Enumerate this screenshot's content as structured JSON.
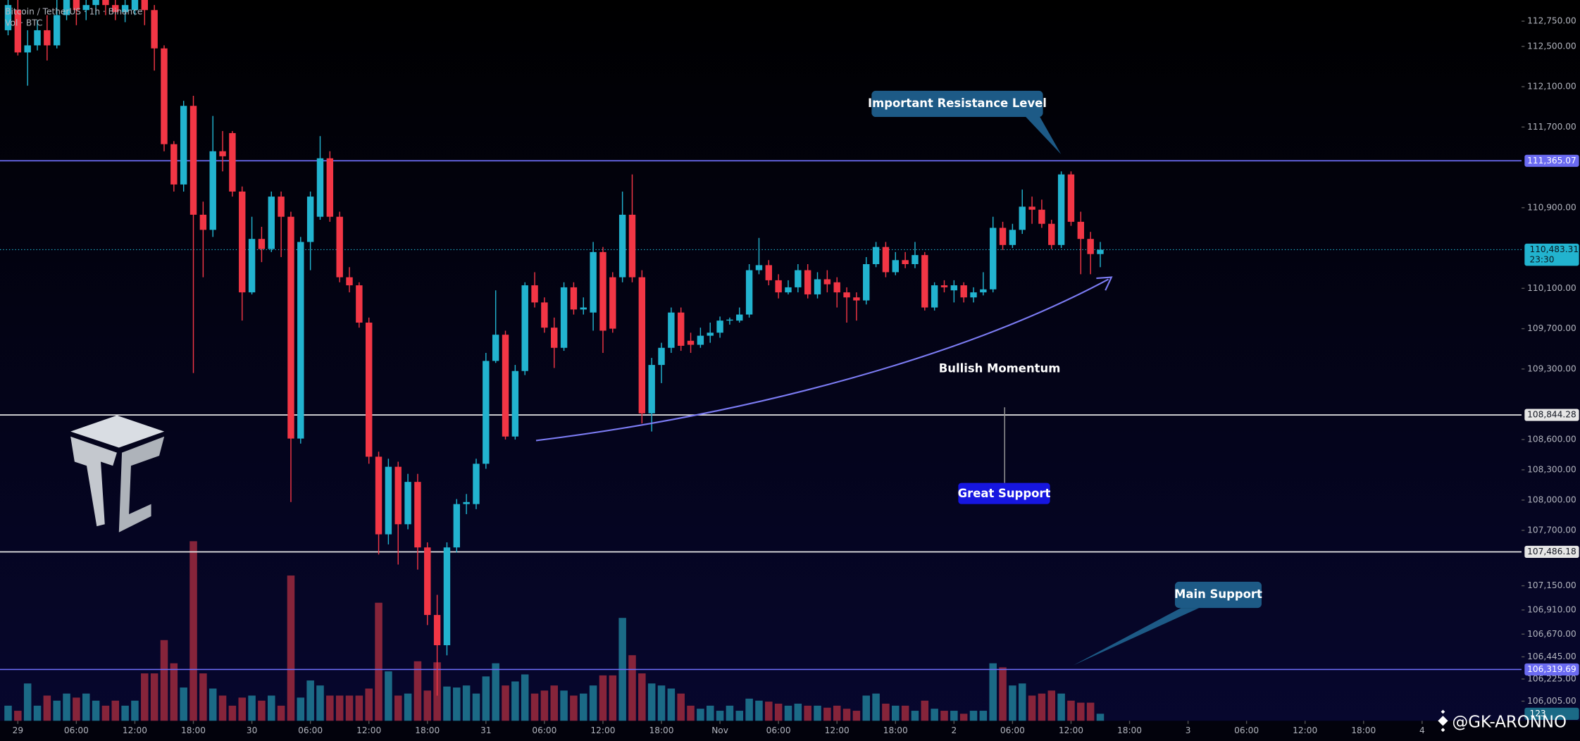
{
  "header": {
    "symbol": "Bitcoin / TetherUS · 1h · Binance",
    "volume_label": "Vol · BTC"
  },
  "chart_data": {
    "type": "candlestick",
    "ohlc": [
      [
        112660,
        113060,
        112610,
        112910
      ],
      [
        112860,
        112960,
        112410,
        112440
      ],
      [
        112440,
        112660,
        112110,
        112510
      ],
      [
        112510,
        112760,
        112460,
        112660
      ],
      [
        112660,
        112810,
        112360,
        112510
      ],
      [
        112510,
        112960,
        112480,
        112810
      ],
      [
        112810,
        113160,
        112760,
        112960
      ],
      [
        112960,
        113110,
        112710,
        112860
      ],
      [
        112860,
        112960,
        112760,
        112910
      ],
      [
        112910,
        113160,
        112810,
        113010
      ],
      [
        113010,
        113110,
        112810,
        112910
      ],
      [
        112910,
        113010,
        112760,
        112840
      ],
      [
        112840,
        112960,
        112740,
        112910
      ],
      [
        112860,
        113110,
        112810,
        113010
      ],
      [
        113010,
        113160,
        112710,
        112860
      ],
      [
        112860,
        112910,
        112260,
        112480
      ],
      [
        112480,
        112510,
        111460,
        111530
      ],
      [
        111530,
        111560,
        111060,
        111130
      ],
      [
        111130,
        111960,
        111060,
        111910
      ],
      [
        111910,
        112010,
        109260,
        110830
      ],
      [
        110830,
        110960,
        110210,
        110680
      ],
      [
        110680,
        111810,
        110610,
        111460
      ],
      [
        111460,
        111660,
        111260,
        111410
      ],
      [
        111640,
        111660,
        111010,
        111060
      ],
      [
        111060,
        111110,
        109780,
        110060
      ],
      [
        110060,
        110810,
        110040,
        110590
      ],
      [
        110590,
        110710,
        110360,
        110490
      ],
      [
        110490,
        111060,
        110460,
        111010
      ],
      [
        111010,
        111060,
        110410,
        110810
      ],
      [
        110810,
        110860,
        107980,
        108610
      ],
      [
        108610,
        110610,
        108560,
        110560
      ],
      [
        110560,
        111060,
        110280,
        111010
      ],
      [
        110810,
        111610,
        110780,
        111390
      ],
      [
        111390,
        111460,
        110760,
        110810
      ],
      [
        110810,
        110860,
        110160,
        110210
      ],
      [
        110210,
        110310,
        110060,
        110130
      ],
      [
        110130,
        110160,
        109710,
        109760
      ],
      [
        109760,
        109810,
        108360,
        108430
      ],
      [
        108430,
        108480,
        107460,
        107660
      ],
      [
        107660,
        108410,
        107560,
        108330
      ],
      [
        108330,
        108380,
        107360,
        107760
      ],
      [
        107760,
        108260,
        107710,
        108180
      ],
      [
        108180,
        108260,
        107310,
        107530
      ],
      [
        107530,
        107580,
        106760,
        106860
      ],
      [
        106860,
        107060,
        106060,
        106560
      ],
      [
        106560,
        107580,
        106460,
        107530
      ],
      [
        107530,
        108010,
        107480,
        107960
      ],
      [
        107960,
        108060,
        107860,
        107980
      ],
      [
        107960,
        108410,
        107910,
        108360
      ],
      [
        108360,
        109460,
        108310,
        109380
      ],
      [
        109380,
        110080,
        109360,
        109640
      ],
      [
        109640,
        109680,
        108600,
        108630
      ],
      [
        108630,
        109340,
        108600,
        109280
      ],
      [
        109280,
        110160,
        109240,
        110130
      ],
      [
        110130,
        110260,
        109910,
        109960
      ],
      [
        109960,
        110010,
        109660,
        109710
      ],
      [
        109710,
        109810,
        109310,
        109510
      ],
      [
        109510,
        110160,
        109480,
        110110
      ],
      [
        110110,
        110160,
        109840,
        109890
      ],
      [
        109890,
        110010,
        109840,
        109910
      ],
      [
        109860,
        110560,
        109680,
        110460
      ],
      [
        110460,
        110510,
        109460,
        109680
      ],
      [
        110210,
        110260,
        109660,
        109700
      ],
      [
        110210,
        111060,
        110160,
        110830
      ],
      [
        110830,
        111230,
        110160,
        110210
      ],
      [
        110210,
        110280,
        108760,
        108860
      ],
      [
        108860,
        109410,
        108680,
        109340
      ],
      [
        109340,
        109560,
        109160,
        109510
      ],
      [
        109510,
        109910,
        109460,
        109860
      ],
      [
        109860,
        109910,
        109480,
        109530
      ],
      [
        109580,
        109660,
        109460,
        109540
      ],
      [
        109540,
        109710,
        109510,
        109630
      ],
      [
        109630,
        109760,
        109560,
        109660
      ],
      [
        109660,
        109820,
        109610,
        109780
      ],
      [
        109780,
        109810,
        109740,
        109790
      ],
      [
        109780,
        109910,
        109760,
        109840
      ],
      [
        109840,
        110340,
        109810,
        110280
      ],
      [
        110280,
        110600,
        110240,
        110330
      ],
      [
        110330,
        110380,
        110130,
        110180
      ],
      [
        110180,
        110240,
        110000,
        110060
      ],
      [
        110060,
        110180,
        110040,
        110110
      ],
      [
        110110,
        110340,
        110060,
        110280
      ],
      [
        110280,
        110340,
        110000,
        110040
      ],
      [
        110040,
        110260,
        110000,
        110190
      ],
      [
        110190,
        110280,
        110060,
        110140
      ],
      [
        110160,
        110210,
        109910,
        110060
      ],
      [
        110060,
        110110,
        109760,
        110010
      ],
      [
        110010,
        110060,
        109780,
        109980
      ],
      [
        109980,
        110410,
        109940,
        110340
      ],
      [
        110340,
        110560,
        110310,
        110510
      ],
      [
        110510,
        110560,
        110210,
        110260
      ],
      [
        110260,
        110460,
        110230,
        110380
      ],
      [
        110380,
        110460,
        110300,
        110340
      ],
      [
        110340,
        110560,
        110300,
        110430
      ],
      [
        110430,
        110460,
        109880,
        109910
      ],
      [
        109910,
        110160,
        109880,
        110130
      ],
      [
        110130,
        110180,
        110060,
        110110
      ],
      [
        110080,
        110180,
        109960,
        110130
      ],
      [
        110130,
        110160,
        109960,
        110010
      ],
      [
        110010,
        110110,
        109960,
        110060
      ],
      [
        110060,
        110260,
        110030,
        110090
      ],
      [
        110090,
        110810,
        110060,
        110700
      ],
      [
        110700,
        110760,
        110480,
        110530
      ],
      [
        110530,
        110740,
        110500,
        110680
      ],
      [
        110680,
        111080,
        110640,
        110910
      ],
      [
        110910,
        111010,
        110740,
        110880
      ],
      [
        110880,
        110980,
        110700,
        110740
      ],
      [
        110740,
        110780,
        110490,
        110530
      ],
      [
        110530,
        111260,
        110500,
        111230
      ],
      [
        111230,
        111260,
        110720,
        110760
      ],
      [
        110760,
        110860,
        110240,
        110590
      ],
      [
        110590,
        110660,
        110240,
        110440
      ],
      [
        110440,
        110560,
        110310,
        110483.31
      ]
    ],
    "volume": [
      263,
      175,
      648,
      263,
      438,
      350,
      473,
      403,
      473,
      350,
      263,
      350,
      263,
      350,
      823,
      823,
      1400,
      998,
      578,
      3115,
      823,
      560,
      438,
      263,
      403,
      438,
      350,
      438,
      263,
      2520,
      403,
      700,
      613,
      438,
      438,
      438,
      438,
      560,
      2048,
      858,
      438,
      473,
      1033,
      525,
      1015,
      595,
      578,
      613,
      473,
      770,
      998,
      613,
      683,
      805,
      473,
      525,
      613,
      525,
      438,
      473,
      613,
      788,
      788,
      1785,
      1138,
      823,
      648,
      613,
      560,
      473,
      263,
      210,
      263,
      175,
      263,
      175,
      385,
      350,
      333,
      298,
      263,
      298,
      263,
      263,
      228,
      263,
      210,
      175,
      438,
      473,
      298,
      263,
      263,
      175,
      350,
      210,
      175,
      175,
      123,
      175,
      175,
      998,
      928,
      613,
      648,
      438,
      473,
      525,
      473,
      350,
      315,
      315,
      123
    ],
    "up_color": "#22b3cf",
    "down_color": "#f23645",
    "volume_up_color": "#1b6a86",
    "volume_down_color": "#86243a",
    "xlim": [
      -0.83,
      155.2
    ],
    "xticks": [
      {
        "value": 1,
        "label": "29"
      },
      {
        "value": 7,
        "label": "06:00"
      },
      {
        "value": 13,
        "label": "12:00"
      },
      {
        "value": 19,
        "label": "18:00"
      },
      {
        "value": 25,
        "label": "30"
      },
      {
        "value": 31,
        "label": "06:00"
      },
      {
        "value": 37,
        "label": "12:00"
      },
      {
        "value": 43,
        "label": "18:00"
      },
      {
        "value": 49,
        "label": "31"
      },
      {
        "value": 55,
        "label": "06:00"
      },
      {
        "value": 61,
        "label": "12:00"
      },
      {
        "value": 67,
        "label": "18:00"
      },
      {
        "value": 73,
        "label": "Nov"
      },
      {
        "value": 79,
        "label": "06:00"
      },
      {
        "value": 85,
        "label": "12:00"
      },
      {
        "value": 91,
        "label": "18:00"
      },
      {
        "value": 97,
        "label": "2"
      },
      {
        "value": 103,
        "label": "06:00"
      },
      {
        "value": 109,
        "label": "12:00"
      },
      {
        "value": 115,
        "label": "18:00"
      },
      {
        "value": 121,
        "label": "3"
      },
      {
        "value": 127,
        "label": "06:00"
      },
      {
        "value": 133,
        "label": "12:00"
      },
      {
        "value": 139,
        "label": "18:00"
      },
      {
        "value": 145,
        "label": "4"
      }
    ],
    "ylim": [
      105810,
      112960
    ],
    "yticks": [
      {
        "value": 112750,
        "label": "112,750.00"
      },
      {
        "value": 112500,
        "label": "112,500.00"
      },
      {
        "value": 112100,
        "label": "112,100.00"
      },
      {
        "value": 111700,
        "label": "111,700.00"
      },
      {
        "value": 110900,
        "label": "110,900.00"
      },
      {
        "value": 110100,
        "label": "110,100.00"
      },
      {
        "value": 109700,
        "label": "109,700.00"
      },
      {
        "value": 109300,
        "label": "109,300.00"
      },
      {
        "value": 108600,
        "label": "108,600.00"
      },
      {
        "value": 108300,
        "label": "108,300.00"
      },
      {
        "value": 108000,
        "label": "108,000.00"
      },
      {
        "value": 107700,
        "label": "107,700.00"
      },
      {
        "value": 107150,
        "label": "107,150.00"
      },
      {
        "value": 106910,
        "label": "106,910.00"
      },
      {
        "value": 106670,
        "label": "106,670.00"
      },
      {
        "value": 106445,
        "label": "106,445.00"
      },
      {
        "value": 106225,
        "label": "106,225.00"
      },
      {
        "value": 106005,
        "label": "106,005.00"
      }
    ],
    "volume_ylim": [
      0,
      12500
    ],
    "levels": [
      {
        "value": 111365.07,
        "label": "111,365.07",
        "color": "#6b6bf2"
      },
      {
        "value": 108844.28,
        "label": "108,844.28",
        "color": "#e6e6e6"
      },
      {
        "value": 107486.18,
        "label": "107,486.18",
        "color": "#e6e6e6"
      },
      {
        "value": 106319.69,
        "label": "106,319.69",
        "color": "#6b6bf2"
      }
    ],
    "last_price_label": "110,483.31",
    "countdown": "23:30",
    "annotations": {
      "resistance": "Important Resistance Level",
      "momentum": "Bullish Momentum",
      "great_support": "Great Support",
      "main_support": "Main Support"
    }
  },
  "watermark": "@GK-ARONNO"
}
